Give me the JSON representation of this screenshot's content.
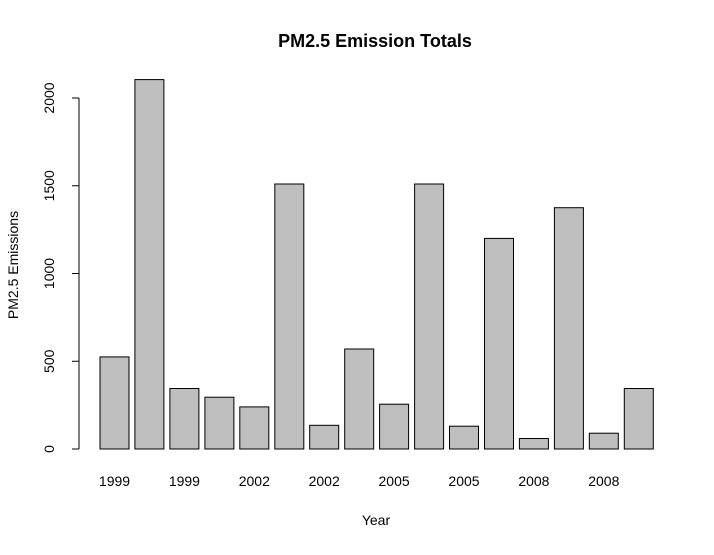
{
  "chart_data": {
    "type": "bar",
    "title": "PM2.5 Emission Totals",
    "xlabel": "Year",
    "ylabel": "PM2.5 Emissions",
    "ylim": [
      0,
      2000
    ],
    "yticks": [
      0,
      500,
      1000,
      1500,
      2000
    ],
    "categories": [
      "1999",
      "1999",
      "1999",
      "1999",
      "2002",
      "2002",
      "2002",
      "2002",
      "2005",
      "2005",
      "2005",
      "2005",
      "2008",
      "2008",
      "2008",
      "2008"
    ],
    "x_tick_labels": [
      {
        "bar_index": 0,
        "label": "1999"
      },
      {
        "bar_index": 2,
        "label": "1999"
      },
      {
        "bar_index": 4,
        "label": "2002"
      },
      {
        "bar_index": 6,
        "label": "2002"
      },
      {
        "bar_index": 8,
        "label": "2005"
      },
      {
        "bar_index": 10,
        "label": "2005"
      },
      {
        "bar_index": 12,
        "label": "2008"
      },
      {
        "bar_index": 14,
        "label": "2008"
      }
    ],
    "values": [
      525,
      2105,
      345,
      295,
      240,
      1510,
      135,
      570,
      255,
      1510,
      130,
      1200,
      60,
      1375,
      90,
      345
    ],
    "bar_color": "#bebebe",
    "bar_stroke": "#000000",
    "grid": false
  }
}
